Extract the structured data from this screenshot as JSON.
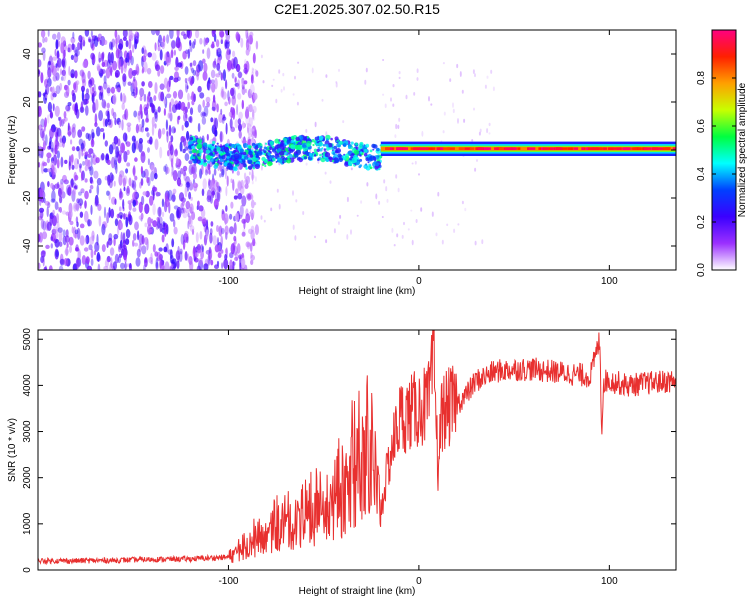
{
  "chart_data": [
    {
      "type": "heatmap",
      "title": "C2E1.2025.307.02.50.R15",
      "xlabel": "Height of straight line (km)",
      "ylabel": "Frequency (Hz)",
      "xlim": [
        -200,
        135
      ],
      "ylim": [
        -50,
        50
      ],
      "xticks": [
        -100,
        0,
        100
      ],
      "xticklabels": [
        "-100",
        "0",
        "100"
      ],
      "yticks": [
        -40,
        -20,
        0,
        20,
        40
      ],
      "yticklabels": [
        "-40",
        "-20",
        "0",
        "20",
        "40"
      ],
      "colorbar": {
        "label": "Normalized spectral amplitude",
        "range": [
          0,
          1
        ],
        "ticks": [
          0.0,
          0.2,
          0.4,
          0.6,
          0.8
        ],
        "ticklabels": [
          "0.0",
          "0.2",
          "0.4",
          "0.6",
          "0.8"
        ],
        "colors": [
          "#ffffff",
          "#9b30ff",
          "#3a00ff",
          "#0040ff",
          "#00ffff",
          "#00ff40",
          "#c8ff00",
          "#ffa000",
          "#ff2000",
          "#ff0080"
        ]
      },
      "features": [
        {
          "name": "broadband noise",
          "x_range": [
            -200,
            -85
          ],
          "freq_range": [
            -50,
            50
          ],
          "amplitude": 0.1
        },
        {
          "name": "signal band",
          "x_range": [
            -120,
            -20
          ],
          "freq_center": 0,
          "amplitude": 0.35
        },
        {
          "name": "carrier line",
          "x_range": [
            -20,
            135
          ],
          "freq_center": 0.5,
          "amplitude": 0.9
        }
      ]
    },
    {
      "type": "line",
      "xlabel": "Height of straight line (km)",
      "ylabel": "SNR (10 * v/v)",
      "xlim": [
        -200,
        135
      ],
      "ylim": [
        0,
        5200
      ],
      "xticks": [
        -100,
        0,
        100
      ],
      "xticklabels": [
        "-100",
        "0",
        "100"
      ],
      "yticks": [
        0,
        1000,
        2000,
        3000,
        4000,
        5000
      ],
      "yticklabels": [
        "0",
        "1000",
        "2000",
        "3000",
        "4000",
        "5000"
      ],
      "series": [
        {
          "name": "SNR",
          "color": "#e8302f",
          "x": [
            -200,
            -180,
            -160,
            -140,
            -120,
            -100,
            -90,
            -80,
            -70,
            -60,
            -50,
            -40,
            -35,
            -30,
            -25,
            -20,
            -15,
            -10,
            -5,
            0,
            5,
            8,
            10,
            12,
            15,
            20,
            25,
            30,
            40,
            50,
            60,
            70,
            80,
            90,
            95,
            96,
            97,
            100,
            110,
            120,
            135
          ],
          "values": [
            200,
            200,
            210,
            230,
            240,
            280,
            500,
            700,
            900,
            1000,
            1200,
            1500,
            1900,
            2100,
            2500,
            1300,
            2500,
            3300,
            3400,
            3500,
            3600,
            4500,
            2200,
            3400,
            3500,
            3600,
            3800,
            4100,
            4300,
            4350,
            4350,
            4300,
            4250,
            4200,
            5000,
            3000,
            4100,
            4100,
            4000,
            4050,
            4100
          ]
        }
      ]
    }
  ]
}
